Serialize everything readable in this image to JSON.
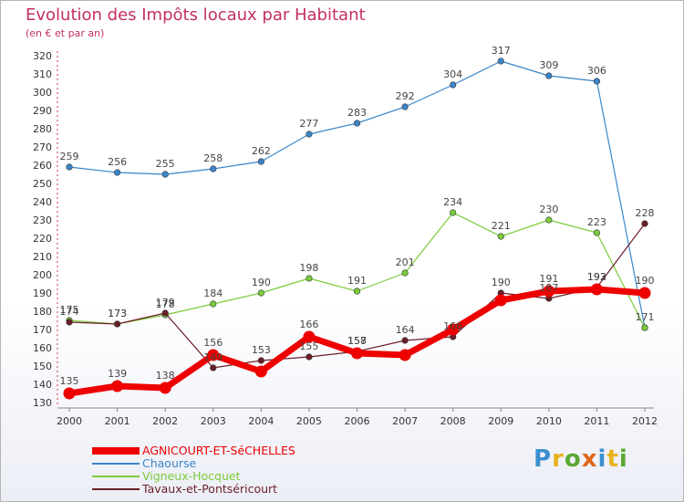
{
  "title": "Evolution des Impôts locaux par Habitant",
  "subtitle": "(en € et par an)",
  "logo": {
    "text": "Proxiti",
    "colors": [
      "#3a8fd0",
      "#e8b21c",
      "#5aa832",
      "#e0671c",
      "#3a8fd0",
      "#e8b21c",
      "#5aa832"
    ]
  },
  "chart_data": {
    "type": "line",
    "x": [
      "2000",
      "2001",
      "2002",
      "2003",
      "2004",
      "2005",
      "2006",
      "2007",
      "2008",
      "2009",
      "2010",
      "2011",
      "2012"
    ],
    "ylim": [
      130,
      320
    ],
    "yticks": [
      130,
      140,
      150,
      160,
      170,
      180,
      190,
      200,
      210,
      220,
      230,
      240,
      250,
      260,
      270,
      280,
      290,
      300,
      310,
      320
    ],
    "grid": false,
    "legend_position": "bottom",
    "title": "Evolution des Impôts locaux par Habitant",
    "ylabel": "(en € et par an)",
    "series": [
      {
        "name": "AGNICOURT-ET-SéCHELLES",
        "color": "#ee0000",
        "values": [
          135,
          139,
          138,
          156,
          147,
          166,
          157,
          156,
          170,
          186,
          191,
          192,
          190
        ],
        "labels": [
          135,
          139,
          138,
          156,
          null,
          166,
          157,
          null,
          null,
          null,
          191,
          192,
          190
        ]
      },
      {
        "name": "Chaourse",
        "color": "#3a86c8",
        "values": [
          259,
          256,
          255,
          258,
          262,
          277,
          283,
          292,
          304,
          317,
          309,
          306,
          171
        ],
        "labels": [
          259,
          256,
          255,
          258,
          262,
          277,
          283,
          292,
          304,
          317,
          309,
          306,
          null
        ]
      },
      {
        "name": "Vigneux-Hocquet",
        "color": "#7acb3a",
        "values": [
          175,
          173,
          178,
          184,
          190,
          198,
          191,
          201,
          234,
          221,
          230,
          223,
          171
        ],
        "labels": [
          175,
          173,
          178,
          184,
          190,
          198,
          191,
          201,
          234,
          221,
          230,
          223,
          171
        ]
      },
      {
        "name": "Tavaux-et-Pontséricourt",
        "color": "#6b1f28",
        "values": [
          174,
          173,
          179,
          149,
          153,
          155,
          158,
          164,
          166,
          190,
          187,
          193,
          228
        ],
        "labels": [
          174,
          173,
          179,
          149,
          153,
          155,
          158,
          164,
          166,
          190,
          187,
          193,
          228
        ]
      }
    ]
  }
}
